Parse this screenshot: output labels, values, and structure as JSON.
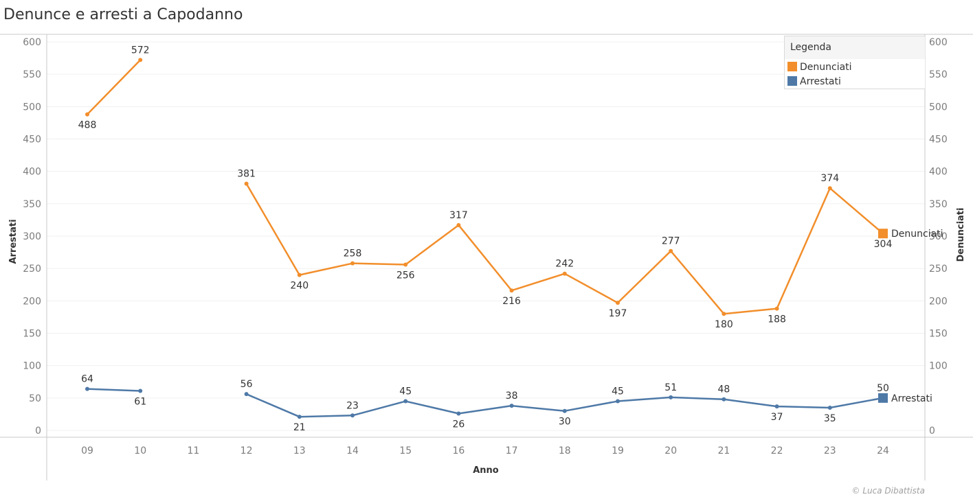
{
  "header": {
    "title": "Denunce e arresti a Capodanno"
  },
  "footer": {
    "credit": "© Luca Dibattista"
  },
  "legend": {
    "title": "Legenda",
    "items": [
      {
        "label": "Denunciati",
        "color": "#f28e2b"
      },
      {
        "label": "Arrestati",
        "color": "#4e79a7"
      }
    ]
  },
  "chart_data": {
    "type": "line",
    "xlabel": "Anno",
    "ylabel_left": "Arrestati",
    "ylabel_right": "Denunciati",
    "categories": [
      "09",
      "10",
      "11",
      "12",
      "13",
      "14",
      "15",
      "16",
      "17",
      "18",
      "19",
      "20",
      "21",
      "22",
      "23",
      "24"
    ],
    "left_ticks": [
      "600",
      "550",
      "500",
      "450",
      "400",
      "350",
      "300",
      "250",
      "200",
      "150",
      "100",
      "50",
      "0"
    ],
    "right_ticks": [
      "600",
      "550",
      "500",
      "450",
      "400",
      "350",
      "300",
      "250",
      "200",
      "150",
      "100",
      "0"
    ],
    "ylim": [
      0,
      600
    ],
    "grid": true,
    "legend_position": "top-right",
    "series": [
      {
        "name": "Denunciati",
        "color": "#f28e2b",
        "values": [
          488,
          572,
          null,
          381,
          240,
          258,
          256,
          317,
          216,
          242,
          197,
          277,
          180,
          188,
          374,
          304
        ],
        "labels": [
          "488",
          "572",
          "",
          "381",
          "240",
          "258",
          "256",
          "317",
          "216",
          "242",
          "197",
          "277",
          "180",
          "188",
          "374",
          "304"
        ],
        "label_pos": [
          "below",
          "above",
          "",
          "above",
          "below",
          "above",
          "below",
          "above",
          "below",
          "above",
          "below",
          "above",
          "below",
          "below",
          "above",
          "below"
        ],
        "end_label": "Denunciati"
      },
      {
        "name": "Arrestati",
        "color": "#4e79a7",
        "values": [
          64,
          61,
          null,
          56,
          21,
          23,
          45,
          26,
          38,
          30,
          45,
          51,
          48,
          37,
          35,
          50
        ],
        "labels": [
          "64",
          "61",
          "",
          "56",
          "21",
          "23",
          "45",
          "26",
          "38",
          "30",
          "45",
          "51",
          "48",
          "37",
          "35",
          "50"
        ],
        "label_pos": [
          "above",
          "below",
          "",
          "above",
          "below",
          "above",
          "above",
          "below",
          "above",
          "below",
          "above",
          "above",
          "above",
          "below",
          "below",
          "above"
        ],
        "end_label": "Arrestati"
      }
    ]
  }
}
